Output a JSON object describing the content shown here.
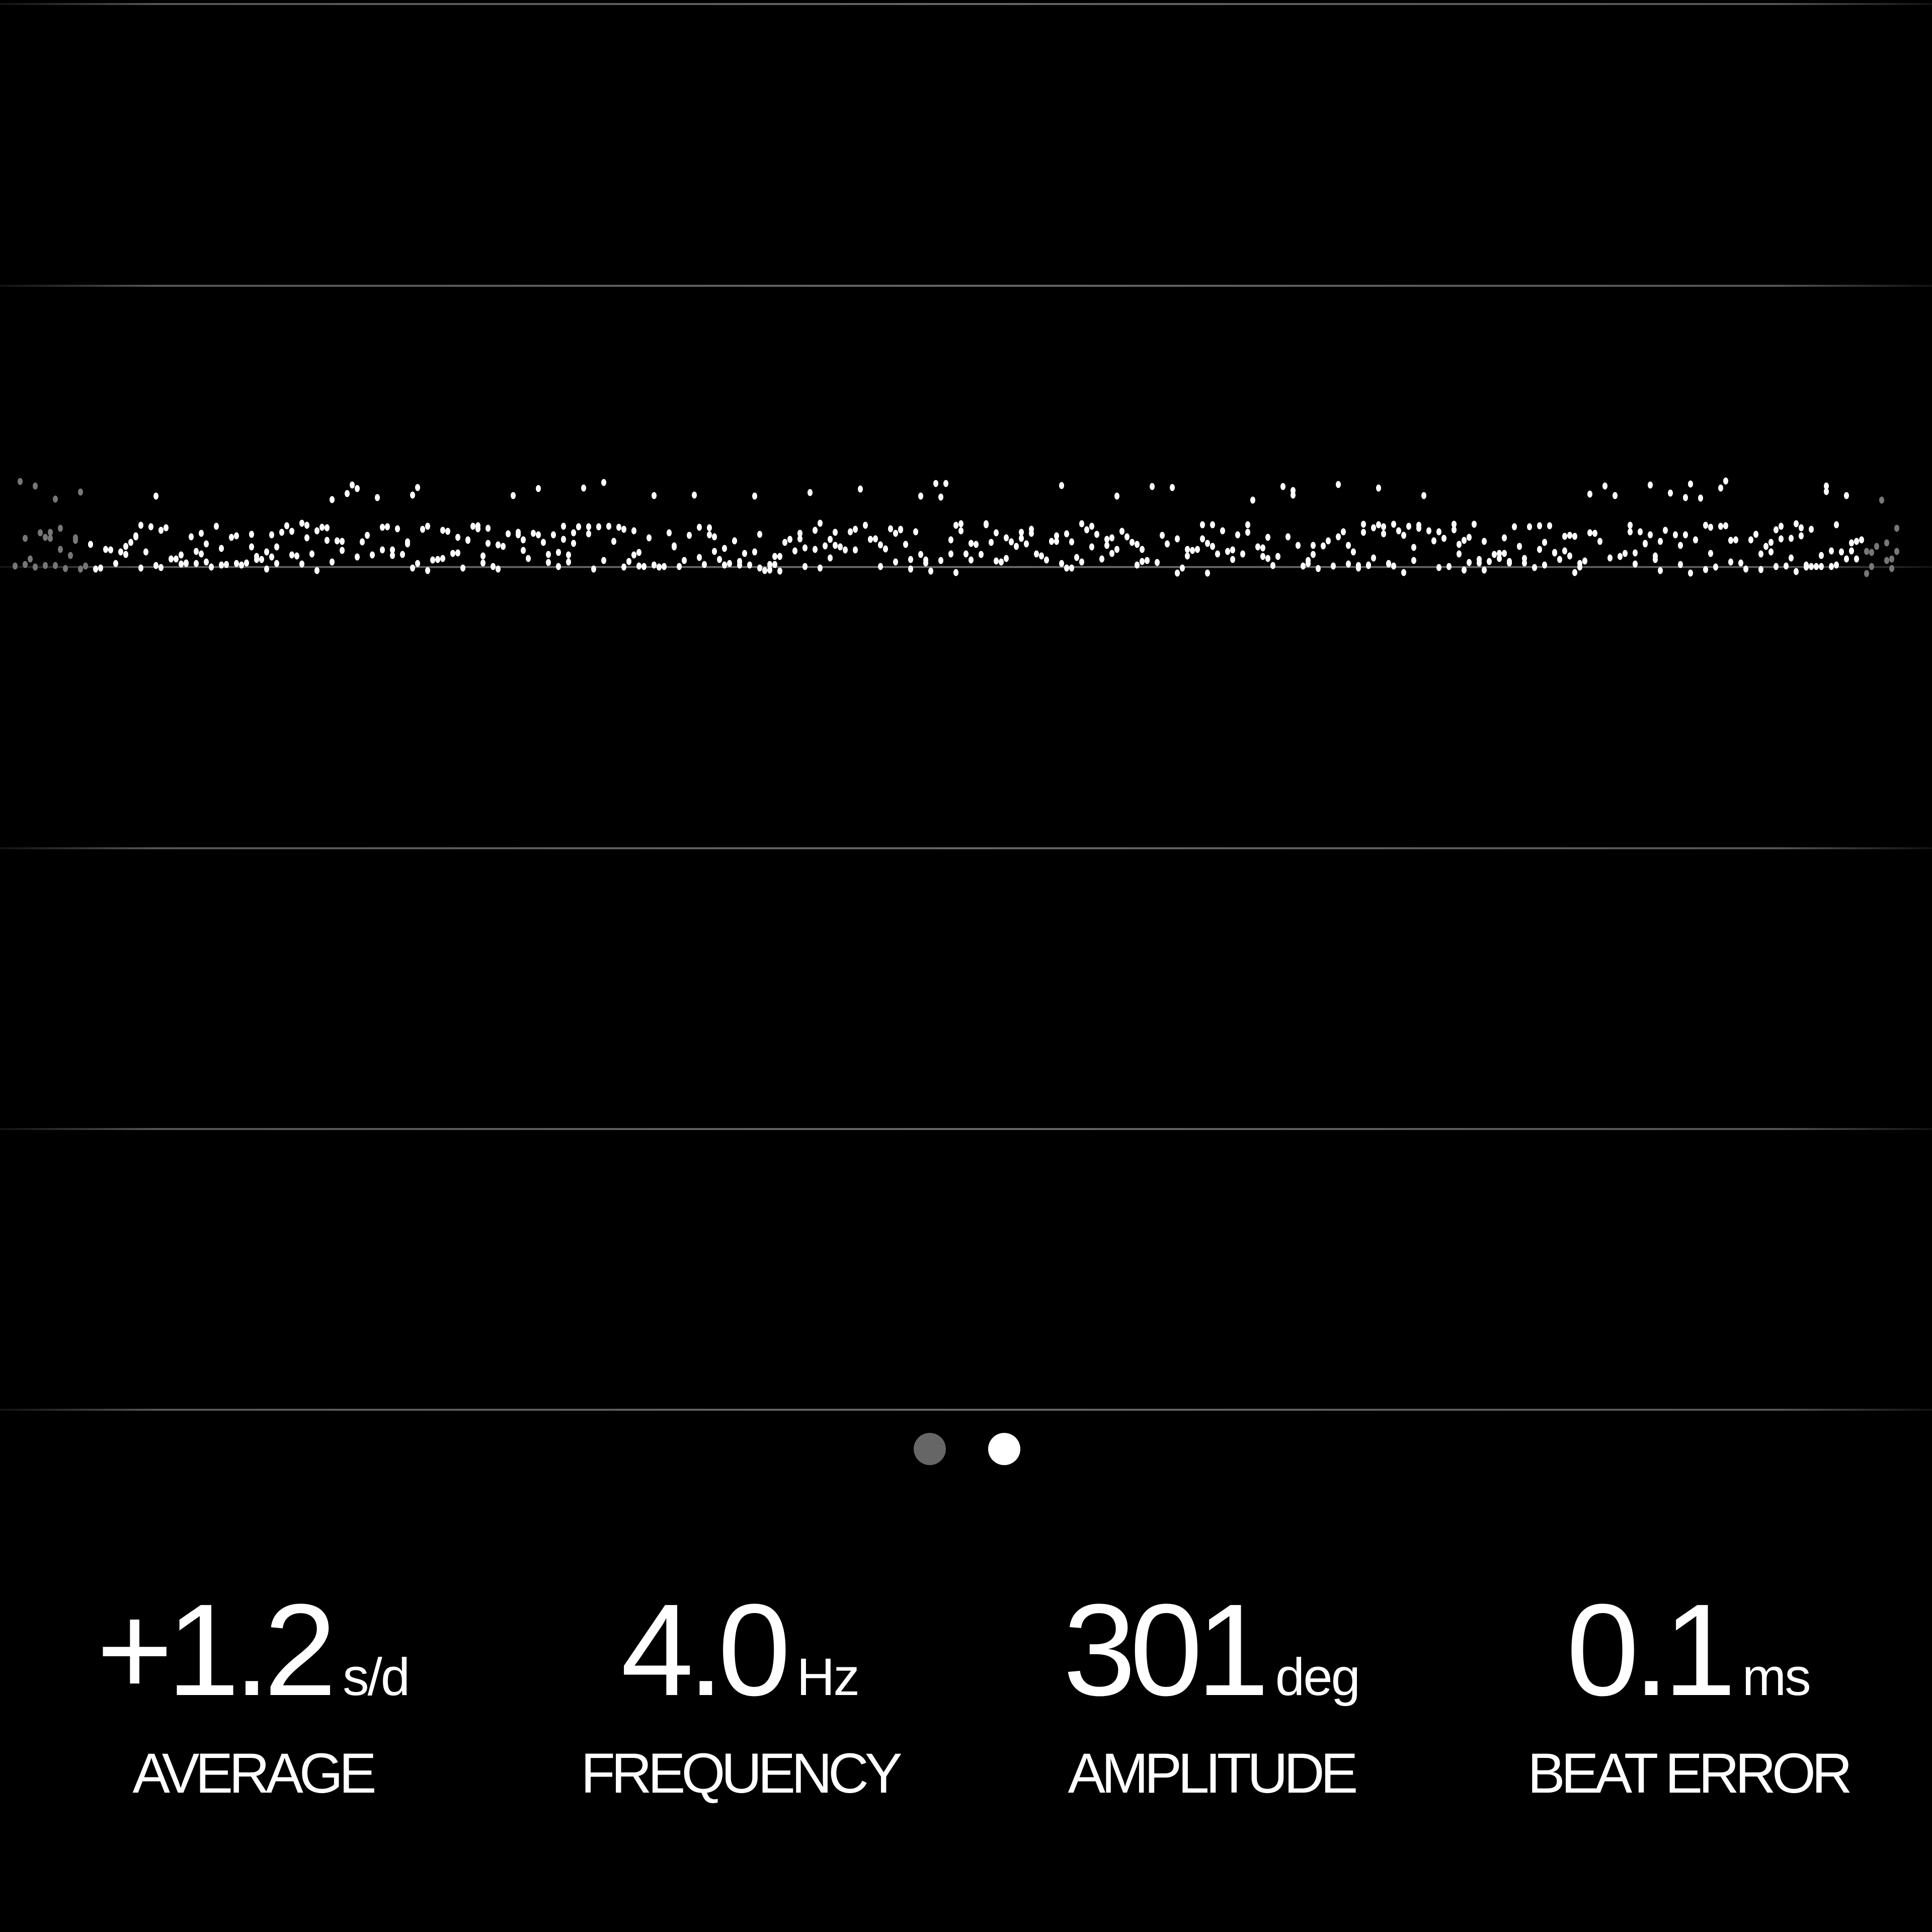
{
  "trace": {
    "dot_color": "#ffffff",
    "grid_color": "#666666"
  },
  "pager": {
    "count": 2,
    "active_index": 1,
    "active_color": "#ffffff",
    "inactive_color": "#666666"
  },
  "stats": [
    {
      "value": "+1.2",
      "unit": "s/d",
      "label": "AVERAGE"
    },
    {
      "value": "4.0",
      "unit": "Hz",
      "label": "FREQUENCY"
    },
    {
      "value": "301",
      "unit": "deg",
      "label": "AMPLITUDE"
    },
    {
      "value": "0.1",
      "unit": "ms",
      "label": "BEAT ERROR"
    }
  ]
}
